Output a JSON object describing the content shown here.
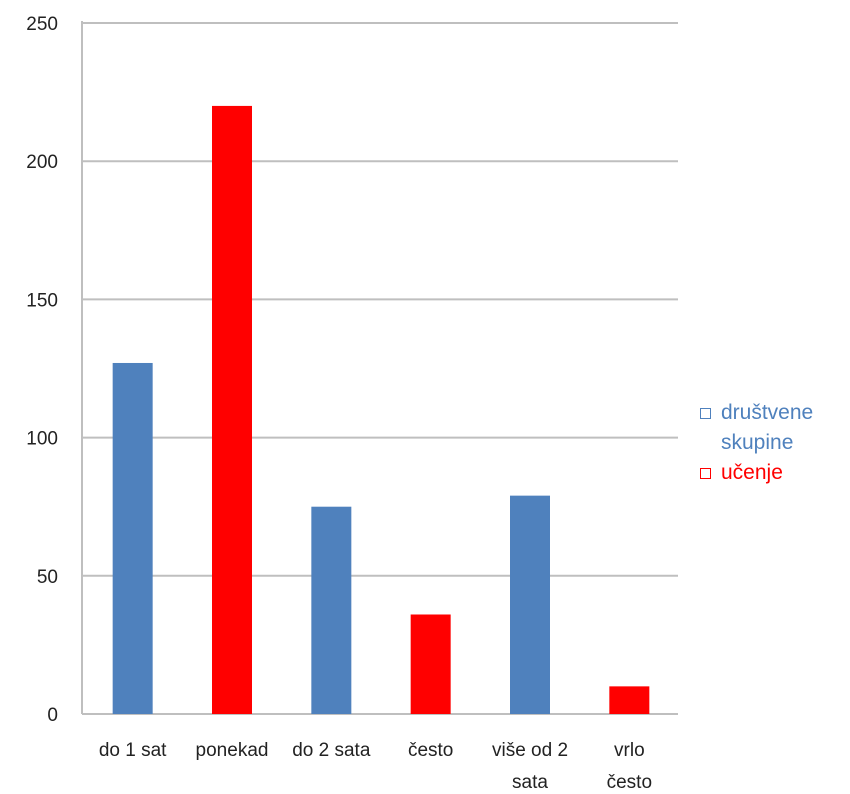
{
  "chart_data": {
    "type": "bar",
    "categories": [
      [
        "do 1 sat"
      ],
      [
        "ponekad"
      ],
      [
        "do 2 sata"
      ],
      [
        "često"
      ],
      [
        "više od 2",
        "sata"
      ],
      [
        "vrlo",
        "često"
      ]
    ],
    "series": [
      {
        "name": "društvene skupine",
        "color": "#4F81BD",
        "values": [
          127,
          null,
          75,
          null,
          79,
          null
        ]
      },
      {
        "name": "učenje",
        "color": "#FF0000",
        "values": [
          null,
          220,
          null,
          36,
          null,
          10
        ]
      }
    ],
    "ylim": [
      0,
      250
    ],
    "yticks": [
      0,
      50,
      100,
      150,
      200,
      250
    ],
    "grid": true,
    "legend_position": "right"
  }
}
